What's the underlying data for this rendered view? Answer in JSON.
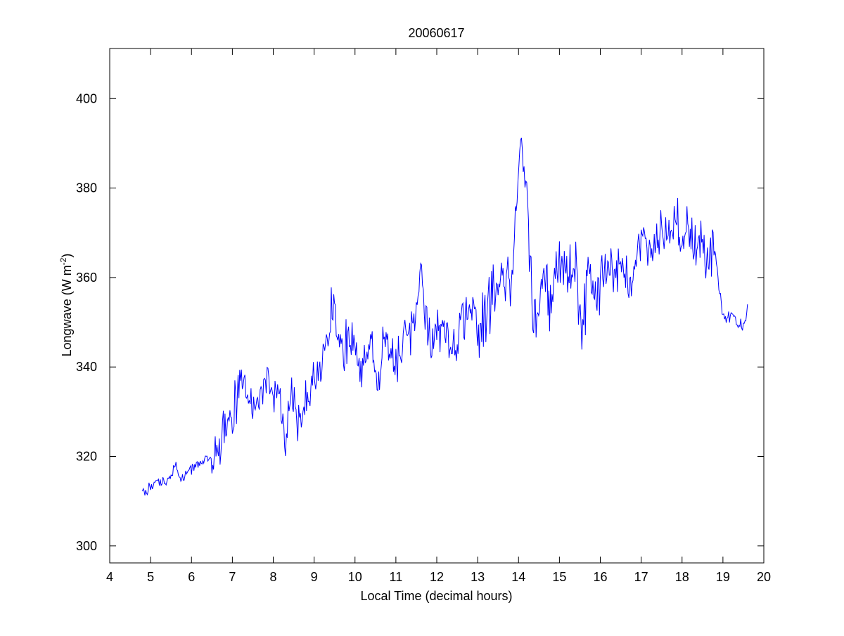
{
  "chart_data": {
    "type": "line",
    "title": "20060617",
    "xlabel": "Local Time (decimal hours)",
    "ylabel": {
      "prefix": "Longwave (W m",
      "superscript": "-2",
      "suffix": ")"
    },
    "xlim": [
      4,
      20
    ],
    "ylim": [
      296.2,
      411.2
    ],
    "xticks": [
      4,
      5,
      6,
      7,
      8,
      9,
      10,
      11,
      12,
      13,
      14,
      15,
      16,
      17,
      18,
      19,
      20
    ],
    "yticks": [
      300,
      320,
      340,
      360,
      380,
      400
    ],
    "grid": false,
    "line_color": "#0000ff",
    "series": [
      {
        "x": [
          4.8,
          5.0,
          5.15,
          5.3,
          5.5,
          5.6,
          5.7,
          5.9,
          6.1,
          6.3,
          6.5,
          6.6,
          6.8,
          7.0,
          7.2,
          7.35,
          7.5,
          7.7,
          7.85,
          8.0,
          8.15,
          8.3,
          8.45,
          8.6,
          8.75,
          8.9,
          9.0,
          9.2,
          9.4,
          9.5,
          9.6,
          9.8,
          9.95,
          10.1,
          10.25,
          10.4,
          10.6,
          10.7,
          10.9,
          11.1,
          11.3,
          11.5,
          11.65,
          11.8,
          12.0,
          12.2,
          12.4,
          12.6,
          12.8,
          13.0,
          13.2,
          13.4,
          13.6,
          13.8,
          13.9,
          14.05,
          14.2,
          14.35,
          14.45,
          14.6,
          14.8,
          15.0,
          15.2,
          15.4,
          15.55,
          15.7,
          15.9,
          16.1,
          16.3,
          16.5,
          16.7,
          16.9,
          17.1,
          17.3,
          17.5,
          17.7,
          17.85,
          18.0,
          18.2,
          18.4,
          18.6,
          18.8,
          18.9,
          19.0,
          19.1,
          19.2,
          19.35,
          19.5,
          19.6
        ],
        "y": [
          312,
          313,
          315,
          314,
          315,
          319,
          315,
          316,
          318,
          319,
          320,
          321,
          326,
          329,
          336,
          334,
          330,
          335,
          338,
          332,
          336,
          324,
          334,
          327,
          332,
          334,
          338,
          341,
          350,
          353,
          347,
          344,
          349,
          340,
          343,
          346,
          335,
          345,
          343,
          342,
          348,
          353,
          361,
          345,
          348,
          348,
          342,
          350,
          353,
          348,
          352,
          356,
          360,
          358,
          368,
          391,
          380,
          352,
          348,
          358,
          355,
          362,
          360,
          363,
          345,
          361,
          356,
          360,
          363,
          362,
          357,
          366,
          370,
          365,
          371,
          368,
          373,
          370,
          369,
          367,
          368,
          366,
          358,
          352,
          351,
          352,
          350,
          349,
          354
        ]
      }
    ]
  }
}
